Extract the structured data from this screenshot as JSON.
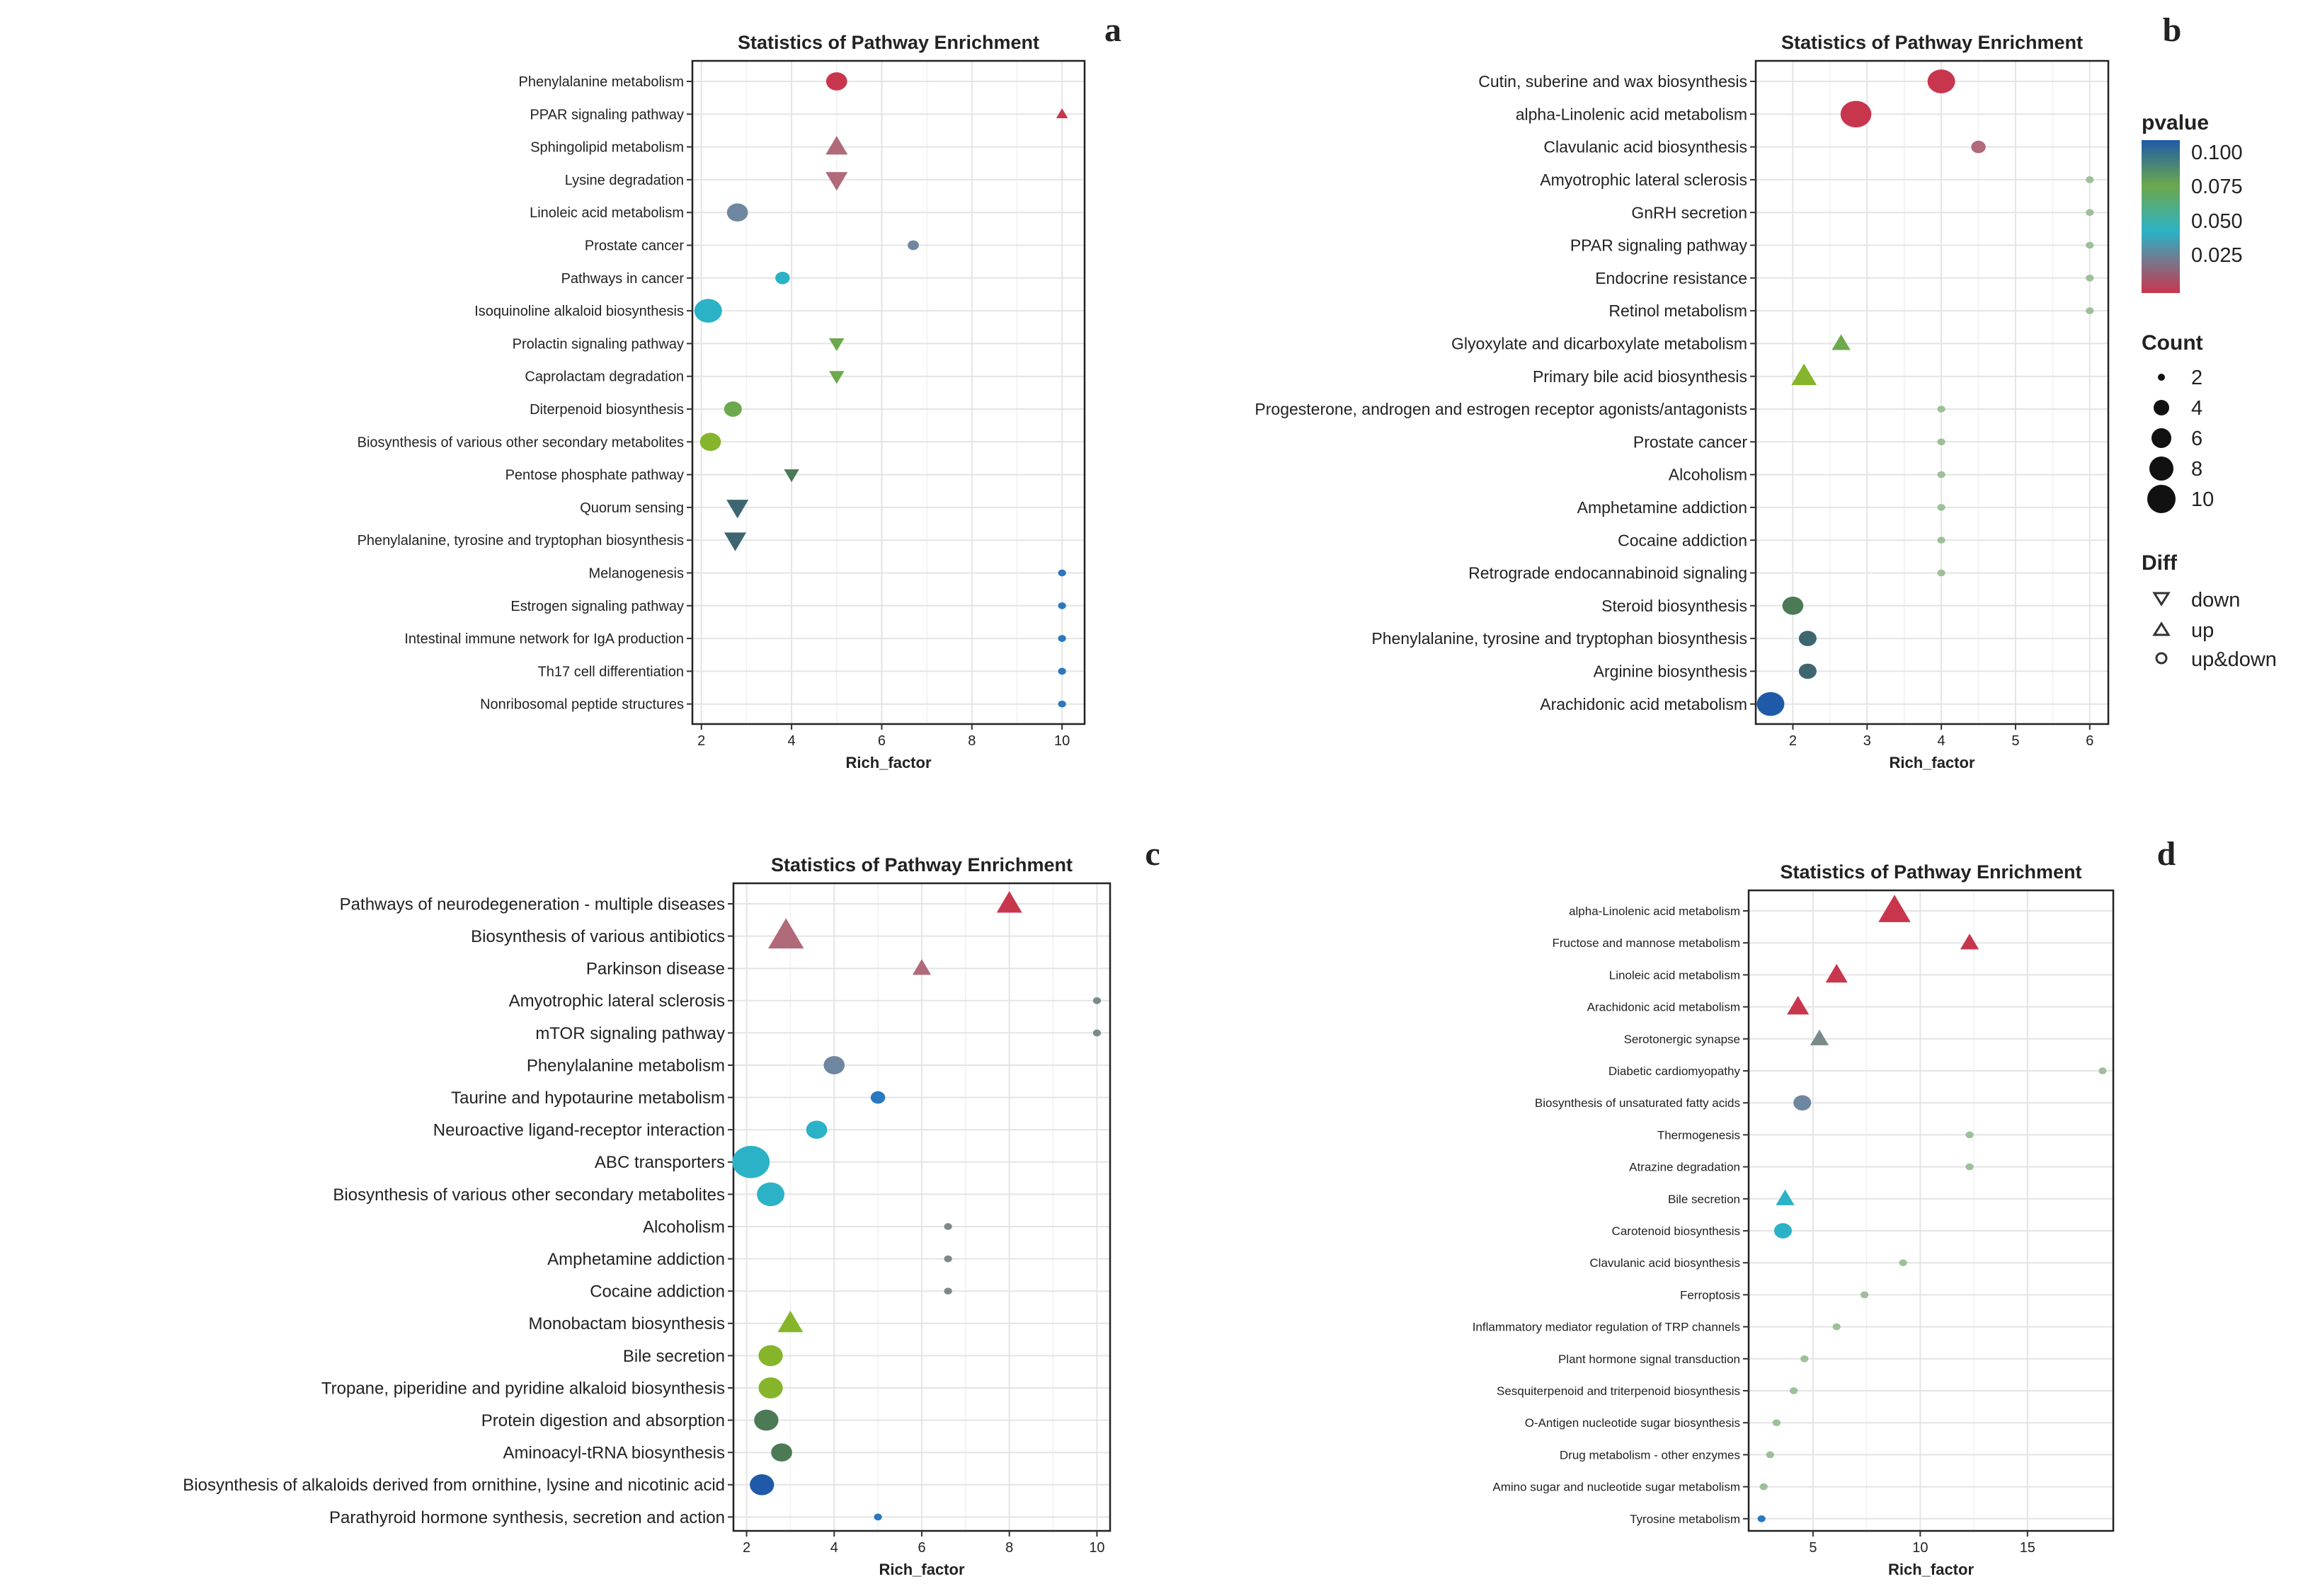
{
  "colors": {
    "red": "#c8364e",
    "mauve": "#b06a7a",
    "steel": "#6f86a0",
    "cyan": "#2bb2c6",
    "green": "#6ca84c",
    "lime": "#86b52b",
    "dkgreen": "#4b7a55",
    "teal": "#3d6670",
    "blue": "#2a78c0",
    "navy": "#1f5aa8",
    "grey": "#7a8a8a",
    "pale": "#9dbf9a"
  },
  "legend": {
    "pvalue_title": "pvalue",
    "pvalue_ticks": [
      "0.100",
      "0.075",
      "0.050",
      "0.025"
    ],
    "count_title": "Count",
    "count_values": [
      "2",
      "4",
      "6",
      "8",
      "10"
    ],
    "diff_title": "Diff",
    "diff_values": [
      "down",
      "up",
      "up&down"
    ]
  },
  "chart_data": [
    {
      "id": "a",
      "panel_label": "a",
      "type": "scatter",
      "title": "Statistics of Pathway Enrichment",
      "xlabel": "Rich_factor",
      "xticks": [
        "2",
        "4",
        "6",
        "8",
        "10"
      ],
      "xlim": [
        1.8,
        10.5
      ],
      "categories": [
        "Phenylalanine metabolism",
        "PPAR signaling pathway",
        "Sphingolipid metabolism",
        "Lysine degradation",
        "Linoleic acid metabolism",
        "Prostate cancer",
        "Pathways in cancer",
        "Isoquinoline alkaloid biosynthesis",
        "Prolactin signaling pathway",
        "Caprolactam degradation",
        "Diterpenoid biosynthesis",
        "Biosynthesis of various other secondary metabolites",
        "Pentose phosphate pathway",
        "Quorum sensing",
        "Phenylalanine, tyrosine and tryptophan biosynthesis",
        "Melanogenesis",
        "Estrogen signaling pathway",
        "Intestinal immune network for IgA production",
        "Th17 cell differentiation",
        "Nonribosomal peptide structures"
      ],
      "points": [
        {
          "x": 5.0,
          "count": 5,
          "shape": "up&down",
          "color": "red"
        },
        {
          "x": 10.0,
          "count": 2,
          "shape": "up",
          "color": "red"
        },
        {
          "x": 5.0,
          "count": 5,
          "shape": "up",
          "color": "mauve"
        },
        {
          "x": 5.0,
          "count": 5,
          "shape": "down",
          "color": "mauve"
        },
        {
          "x": 2.8,
          "count": 5,
          "shape": "up&down",
          "color": "steel"
        },
        {
          "x": 6.7,
          "count": 2,
          "shape": "up&down",
          "color": "steel"
        },
        {
          "x": 3.8,
          "count": 3,
          "shape": "up&down",
          "color": "cyan"
        },
        {
          "x": 2.15,
          "count": 7,
          "shape": "up&down",
          "color": "cyan"
        },
        {
          "x": 5.0,
          "count": 3,
          "shape": "down",
          "color": "green"
        },
        {
          "x": 5.0,
          "count": 3,
          "shape": "down",
          "color": "green"
        },
        {
          "x": 2.7,
          "count": 4,
          "shape": "up&down",
          "color": "green"
        },
        {
          "x": 2.2,
          "count": 5,
          "shape": "up&down",
          "color": "lime"
        },
        {
          "x": 4.0,
          "count": 3,
          "shape": "down",
          "color": "dkgreen"
        },
        {
          "x": 2.8,
          "count": 5,
          "shape": "down",
          "color": "teal"
        },
        {
          "x": 2.75,
          "count": 5,
          "shape": "down",
          "color": "teal"
        },
        {
          "x": 10.0,
          "count": 1,
          "shape": "up&down",
          "color": "blue"
        },
        {
          "x": 10.0,
          "count": 1,
          "shape": "up&down",
          "color": "blue"
        },
        {
          "x": 10.0,
          "count": 1,
          "shape": "up&down",
          "color": "blue"
        },
        {
          "x": 10.0,
          "count": 1,
          "shape": "up&down",
          "color": "blue"
        },
        {
          "x": 10.0,
          "count": 1,
          "shape": "up&down",
          "color": "blue"
        }
      ]
    },
    {
      "id": "b",
      "panel_label": "b",
      "type": "scatter",
      "title": "Statistics of Pathway Enrichment",
      "xlabel": "Rich_factor",
      "xticks": [
        "2",
        "3",
        "4",
        "5",
        "6"
      ],
      "xlim": [
        1.5,
        6.25
      ],
      "categories": [
        "Cutin, suberine and wax biosynthesis",
        "alpha-Linolenic acid metabolism",
        "Clavulanic acid biosynthesis",
        "Amyotrophic lateral sclerosis",
        "GnRH secretion",
        "PPAR signaling pathway",
        "Endocrine resistance",
        "Retinol metabolism",
        "Glyoxylate and dicarboxylate metabolism",
        "Primary bile acid biosynthesis",
        "Progesterone, androgen and estrogen receptor agonists/antagonists",
        "Prostate cancer",
        "Alcoholism",
        "Amphetamine addiction",
        "Cocaine addiction",
        "Retrograde endocannabinoid signaling",
        "Steroid biosynthesis",
        "Phenylalanine, tyrosine and tryptophan biosynthesis",
        "Arginine biosynthesis",
        "Arachidonic acid metabolism"
      ],
      "points": [
        {
          "x": 4.0,
          "count": 7,
          "shape": "up&down",
          "color": "red"
        },
        {
          "x": 2.85,
          "count": 8,
          "shape": "up&down",
          "color": "red"
        },
        {
          "x": 4.5,
          "count": 3,
          "shape": "up&down",
          "color": "mauve"
        },
        {
          "x": 6.0,
          "count": 1,
          "shape": "up&down",
          "color": "pale"
        },
        {
          "x": 6.0,
          "count": 1,
          "shape": "up&down",
          "color": "pale"
        },
        {
          "x": 6.0,
          "count": 1,
          "shape": "up&down",
          "color": "pale"
        },
        {
          "x": 6.0,
          "count": 1,
          "shape": "up&down",
          "color": "pale"
        },
        {
          "x": 6.0,
          "count": 1,
          "shape": "up&down",
          "color": "pale"
        },
        {
          "x": 2.65,
          "count": 4,
          "shape": "up",
          "color": "green"
        },
        {
          "x": 2.15,
          "count": 6,
          "shape": "up",
          "color": "lime"
        },
        {
          "x": 4.0,
          "count": 1,
          "shape": "up&down",
          "color": "pale"
        },
        {
          "x": 4.0,
          "count": 1,
          "shape": "up&down",
          "color": "pale"
        },
        {
          "x": 4.0,
          "count": 1,
          "shape": "up&down",
          "color": "pale"
        },
        {
          "x": 4.0,
          "count": 1,
          "shape": "up&down",
          "color": "pale"
        },
        {
          "x": 4.0,
          "count": 1,
          "shape": "up&down",
          "color": "pale"
        },
        {
          "x": 4.0,
          "count": 1,
          "shape": "up&down",
          "color": "pale"
        },
        {
          "x": 2.0,
          "count": 5,
          "shape": "up&down",
          "color": "dkgreen"
        },
        {
          "x": 2.2,
          "count": 4,
          "shape": "up&down",
          "color": "teal"
        },
        {
          "x": 2.2,
          "count": 4,
          "shape": "up&down",
          "color": "teal"
        },
        {
          "x": 1.7,
          "count": 7,
          "shape": "up&down",
          "color": "navy"
        }
      ]
    },
    {
      "id": "c",
      "panel_label": "c",
      "type": "scatter",
      "title": "Statistics of Pathway Enrichment",
      "xlabel": "Rich_factor",
      "xticks": [
        "2",
        "4",
        "6",
        "8",
        "10"
      ],
      "xlim": [
        1.7,
        10.3
      ],
      "categories": [
        "Pathways of neurodegeneration - multiple diseases",
        "Biosynthesis of various antibiotics",
        "Parkinson disease",
        "Amyotrophic lateral sclerosis",
        "mTOR signaling pathway",
        "Phenylalanine metabolism",
        "Taurine and hypotaurine metabolism",
        "Neuroactive ligand-receptor interaction",
        "ABC transporters",
        "Biosynthesis of various other secondary metabolites",
        "Alcoholism",
        "Amphetamine addiction",
        "Cocaine addiction",
        "Monobactam biosynthesis",
        "Bile secretion",
        "Tropane, piperidine and pyridine alkaloid biosynthesis",
        "Protein digestion and absorption",
        "Aminoacyl-tRNA biosynthesis",
        "Biosynthesis of alkaloids derived from ornithine, lysine and nicotinic acid",
        "Parathyroid hormone synthesis, secretion and action"
      ],
      "points": [
        {
          "x": 8.0,
          "count": 6,
          "shape": "up",
          "color": "red"
        },
        {
          "x": 2.9,
          "count": 9,
          "shape": "up",
          "color": "mauve"
        },
        {
          "x": 6.0,
          "count": 4,
          "shape": "up",
          "color": "mauve"
        },
        {
          "x": 10.0,
          "count": 1,
          "shape": "up&down",
          "color": "grey"
        },
        {
          "x": 10.0,
          "count": 1,
          "shape": "up&down",
          "color": "grey"
        },
        {
          "x": 4.0,
          "count": 5,
          "shape": "up&down",
          "color": "steel"
        },
        {
          "x": 5.0,
          "count": 3,
          "shape": "up&down",
          "color": "blue"
        },
        {
          "x": 3.6,
          "count": 5,
          "shape": "up&down",
          "color": "cyan"
        },
        {
          "x": 2.1,
          "count": 10,
          "shape": "up&down",
          "color": "cyan"
        },
        {
          "x": 2.55,
          "count": 7,
          "shape": "up&down",
          "color": "cyan"
        },
        {
          "x": 6.6,
          "count": 1,
          "shape": "up&down",
          "color": "grey"
        },
        {
          "x": 6.6,
          "count": 1,
          "shape": "up&down",
          "color": "grey"
        },
        {
          "x": 6.6,
          "count": 1,
          "shape": "up&down",
          "color": "grey"
        },
        {
          "x": 3.0,
          "count": 6,
          "shape": "up",
          "color": "lime"
        },
        {
          "x": 2.55,
          "count": 6,
          "shape": "up&down",
          "color": "lime"
        },
        {
          "x": 2.55,
          "count": 6,
          "shape": "up&down",
          "color": "lime"
        },
        {
          "x": 2.45,
          "count": 6,
          "shape": "up&down",
          "color": "dkgreen"
        },
        {
          "x": 2.8,
          "count": 5,
          "shape": "up&down",
          "color": "dkgreen"
        },
        {
          "x": 2.35,
          "count": 6,
          "shape": "up&down",
          "color": "navy"
        },
        {
          "x": 5.0,
          "count": 1,
          "shape": "up&down",
          "color": "blue"
        }
      ]
    },
    {
      "id": "d",
      "panel_label": "d",
      "type": "scatter",
      "title": "Statistics of Pathway Enrichment",
      "xlabel": "Rich_factor",
      "xticks": [
        "5",
        "10",
        "15"
      ],
      "xlim": [
        2.0,
        19.0
      ],
      "categories": [
        "alpha-Linolenic acid metabolism",
        "Fructose and mannose metabolism",
        "Linoleic acid metabolism",
        "Arachidonic acid metabolism",
        "Serotonergic synapse",
        "Diabetic cardiomyopathy",
        "Biosynthesis of unsaturated fatty acids",
        "Thermogenesis",
        "Atrazine degradation",
        "Bile secretion",
        "Carotenoid biosynthesis",
        "Clavulanic acid biosynthesis",
        "Ferroptosis",
        "Inflammatory mediator regulation of TRP channels",
        "Plant hormone signal transduction",
        "Sesquiterpenoid and triterpenoid biosynthesis",
        "O-Antigen nucleotide sugar biosynthesis",
        "Drug metabolism - other enzymes",
        "Amino sugar and nucleotide sugar metabolism",
        "Tyrosine metabolism"
      ],
      "points": [
        {
          "x": 8.8,
          "count": 8,
          "shape": "up",
          "color": "red"
        },
        {
          "x": 12.3,
          "count": 4,
          "shape": "up",
          "color": "red"
        },
        {
          "x": 6.1,
          "count": 5,
          "shape": "up",
          "color": "red"
        },
        {
          "x": 4.3,
          "count": 5,
          "shape": "up",
          "color": "red"
        },
        {
          "x": 5.3,
          "count": 4,
          "shape": "up",
          "color": "grey"
        },
        {
          "x": 18.5,
          "count": 1,
          "shape": "up&down",
          "color": "pale"
        },
        {
          "x": 4.5,
          "count": 4,
          "shape": "up&down",
          "color": "steel"
        },
        {
          "x": 12.3,
          "count": 1,
          "shape": "up&down",
          "color": "pale"
        },
        {
          "x": 12.3,
          "count": 1,
          "shape": "up&down",
          "color": "pale"
        },
        {
          "x": 3.7,
          "count": 4,
          "shape": "up",
          "color": "cyan"
        },
        {
          "x": 3.6,
          "count": 4,
          "shape": "up&down",
          "color": "cyan"
        },
        {
          "x": 9.2,
          "count": 1,
          "shape": "up&down",
          "color": "pale"
        },
        {
          "x": 7.4,
          "count": 1,
          "shape": "up&down",
          "color": "pale"
        },
        {
          "x": 6.1,
          "count": 1,
          "shape": "up&down",
          "color": "pale"
        },
        {
          "x": 4.6,
          "count": 1,
          "shape": "up&down",
          "color": "pale"
        },
        {
          "x": 4.1,
          "count": 1,
          "shape": "up&down",
          "color": "pale"
        },
        {
          "x": 3.3,
          "count": 1,
          "shape": "up&down",
          "color": "pale"
        },
        {
          "x": 3.0,
          "count": 1,
          "shape": "up&down",
          "color": "pale"
        },
        {
          "x": 2.7,
          "count": 1,
          "shape": "up&down",
          "color": "pale"
        },
        {
          "x": 2.6,
          "count": 1,
          "shape": "up&down",
          "color": "blue"
        }
      ]
    }
  ]
}
